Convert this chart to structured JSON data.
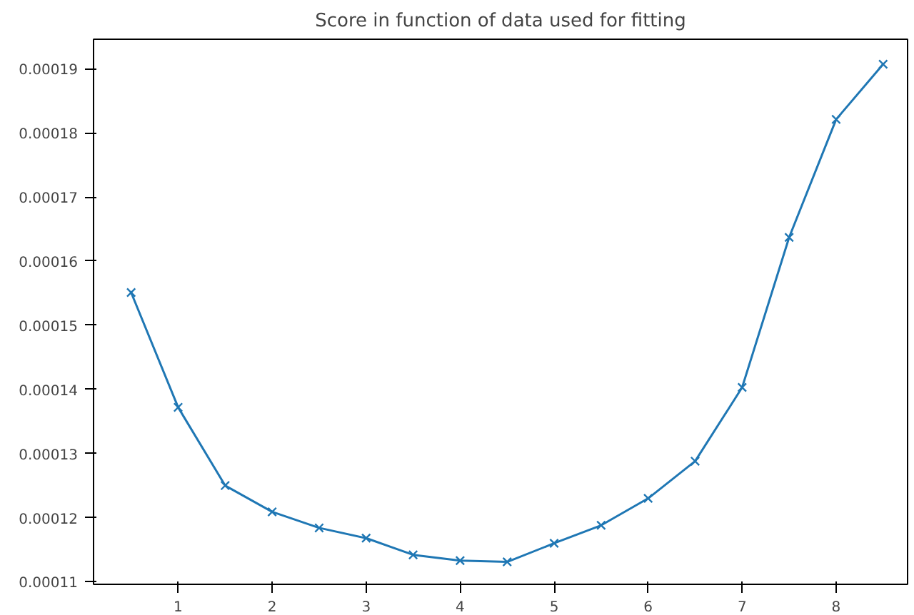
{
  "chart_data": {
    "type": "line",
    "title": "Score in function of data used for fitting",
    "x": [
      0.5,
      1,
      1.5,
      2,
      2.5,
      3,
      3.5,
      4,
      4.5,
      5,
      5.5,
      6,
      6.5,
      7,
      7.5,
      8,
      8.5
    ],
    "series": [
      {
        "color": "#1f77b4",
        "values": [
          0.0001551,
          0.0001372,
          0.000125,
          0.0001209,
          0.0001184,
          0.0001168,
          0.0001142,
          0.0001133,
          0.0001131,
          0.000116,
          0.0001188,
          0.000123,
          0.0001288,
          0.0001403,
          0.0001637,
          0.0001821,
          0.0001907
        ]
      }
    ],
    "xlim": [
      0.1,
      8.76
    ],
    "ylim": [
      0.0001096,
      0.0001946
    ],
    "xticks": [
      1,
      2,
      3,
      4,
      5,
      6,
      7,
      8
    ],
    "yticks": [
      0.00011,
      0.00012,
      0.00013,
      0.00014,
      0.00015,
      0.00016,
      0.00017,
      0.00018,
      0.00019
    ],
    "grid": false,
    "marker": "cross",
    "line_style": "solid"
  }
}
